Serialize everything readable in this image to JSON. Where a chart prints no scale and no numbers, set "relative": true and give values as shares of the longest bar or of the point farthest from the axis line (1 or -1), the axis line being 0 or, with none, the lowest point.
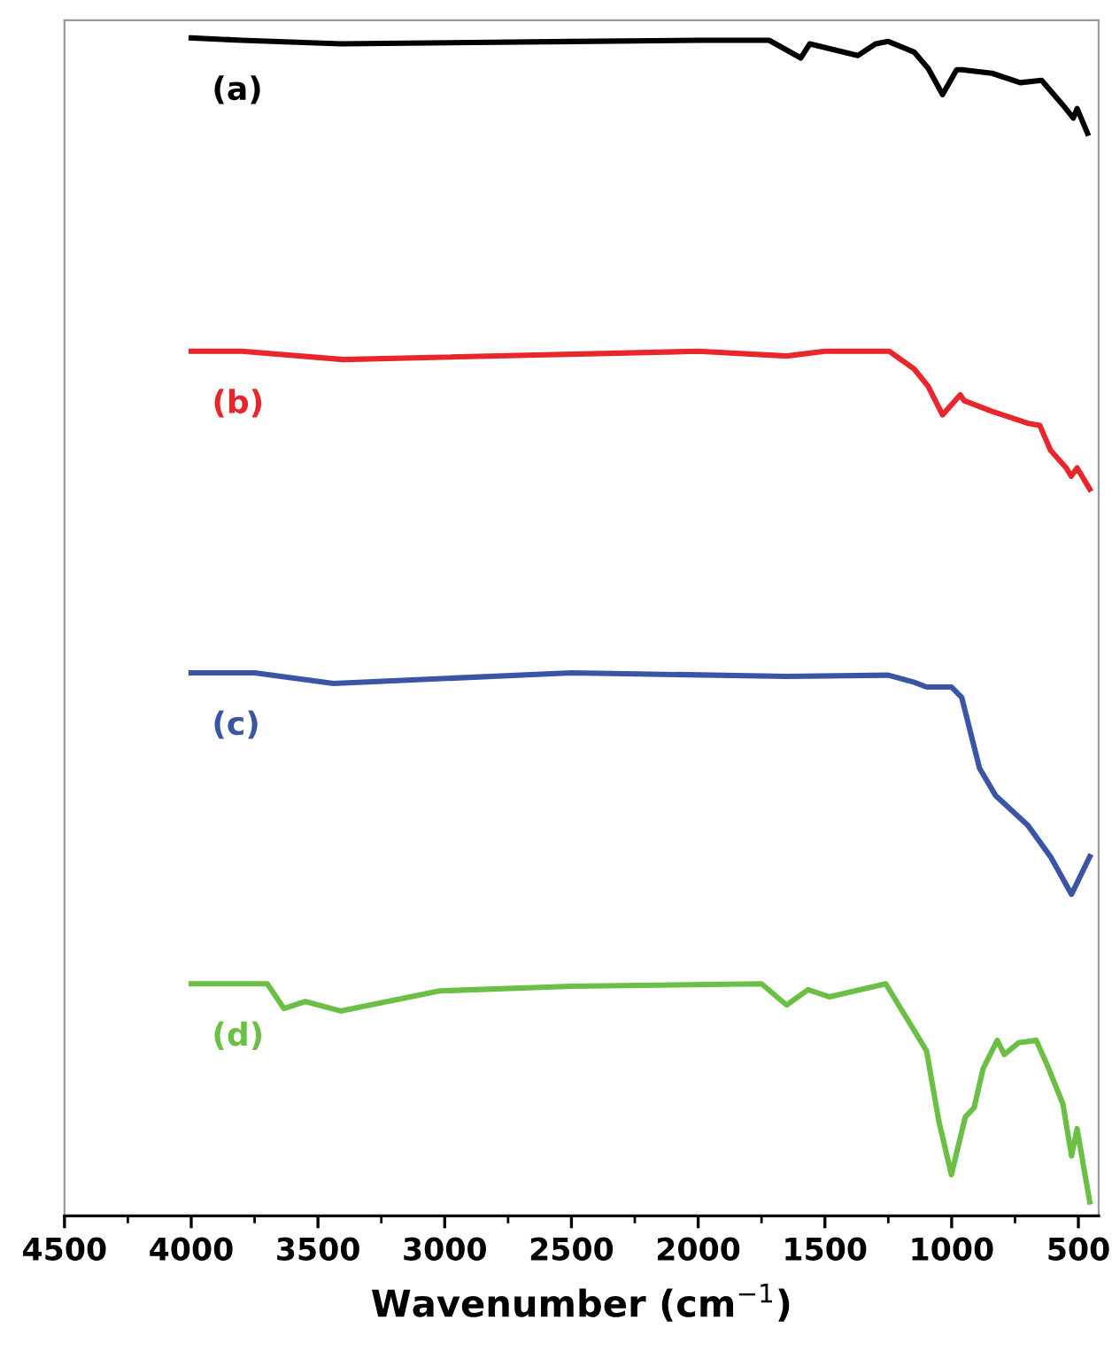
{
  "chart_data": {
    "type": "line",
    "relative": true,
    "xlabel": "Wavenumber (cm$^{−1}$)",
    "xlim": [
      4500,
      420
    ],
    "xticks": [
      4500,
      4000,
      3500,
      3000,
      2500,
      2000,
      1500,
      1000,
      500
    ],
    "tick_labels": "x",
    "grid": false,
    "legend": false,
    "marker": "none",
    "line_style": "solid",
    "series": [
      {
        "name": "(a)",
        "color": "#000000",
        "x": [
          4000,
          3800,
          3410,
          2500,
          2000,
          1720,
          1595,
          1560,
          1370,
          1300,
          1250,
          1148,
          1092,
          1036,
          980,
          960,
          841,
          729,
          645,
          561,
          520,
          505,
          464
        ],
        "values": [
          1.0,
          0.998,
          0.995,
          0.997,
          0.998,
          0.998,
          0.983,
          0.995,
          0.985,
          0.995,
          0.997,
          0.988,
          0.974,
          0.952,
          0.973,
          0.973,
          0.97,
          0.962,
          0.964,
          0.943,
          0.932,
          0.94,
          0.919
        ]
      },
      {
        "name": "(b)",
        "color": "#e8262b",
        "x": [
          4000,
          3800,
          3400,
          2000,
          1651,
          1500,
          1246,
          1148,
          1092,
          1036,
          966,
          950,
          841,
          701,
          652,
          610,
          548,
          528,
          505,
          455
        ],
        "values": [
          0.734,
          0.734,
          0.727,
          0.734,
          0.73,
          0.734,
          0.734,
          0.719,
          0.704,
          0.68,
          0.697,
          0.692,
          0.683,
          0.673,
          0.671,
          0.65,
          0.635,
          0.628,
          0.635,
          0.617
        ]
      },
      {
        "name": "(c)",
        "color": "#3a55a4",
        "x": [
          4000,
          3750,
          3439,
          2500,
          1651,
          1250,
          1148,
          1099,
          1001,
          960,
          890,
          827,
          701,
          610,
          527,
          455
        ],
        "values": [
          0.461,
          0.461,
          0.452,
          0.461,
          0.458,
          0.459,
          0.453,
          0.449,
          0.449,
          0.44,
          0.38,
          0.357,
          0.332,
          0.305,
          0.273,
          0.305
        ]
      },
      {
        "name": "(d)",
        "color": "#6bbf45",
        "x": [
          4000,
          3700,
          3634,
          3550,
          3411,
          3020,
          2500,
          1750,
          1651,
          1567,
          1483,
          1260,
          1141,
          1099,
          1050,
          1001,
          946,
          911,
          876,
          820,
          792,
          736,
          666,
          617,
          561,
          527,
          505,
          477,
          455
        ],
        "values": [
          0.197,
          0.197,
          0.176,
          0.182,
          0.174,
          0.191,
          0.195,
          0.197,
          0.179,
          0.192,
          0.186,
          0.197,
          0.155,
          0.14,
          0.08,
          0.035,
          0.084,
          0.092,
          0.125,
          0.149,
          0.137,
          0.147,
          0.149,
          0.125,
          0.095,
          0.051,
          0.074,
          0.039,
          0.012
        ]
      }
    ]
  }
}
